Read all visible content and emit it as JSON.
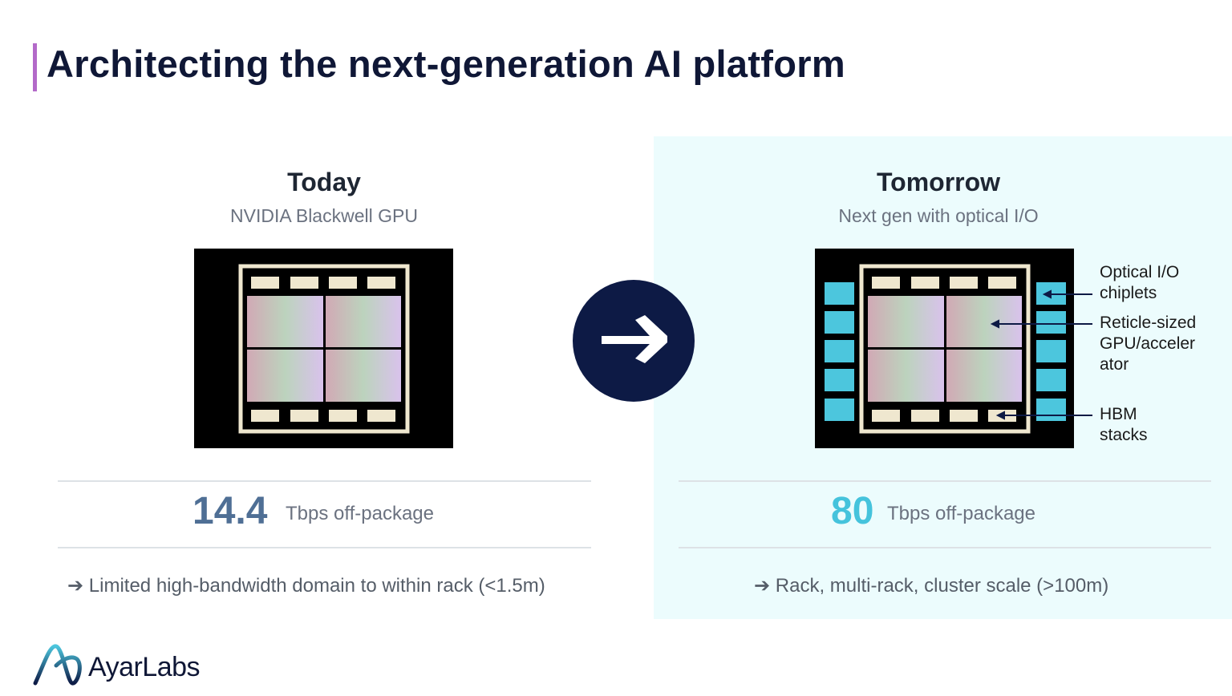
{
  "title": "Architecting the next-generation AI platform",
  "colors": {
    "accent": "#b36ac9",
    "navy": "#0d1a45",
    "today_value": "#4f6f95",
    "tomorrow_value": "#45c3dc",
    "chiplet": "#4cc6dd",
    "panel_bg": "#ecfcfd"
  },
  "today": {
    "heading": "Today",
    "subheading": "NVIDIA Blackwell GPU",
    "value": "14.4",
    "unit": "Tbps off-package",
    "note": "➔ Limited high-bandwidth domain to within rack (<1.5m)"
  },
  "tomorrow": {
    "heading": "Tomorrow",
    "subheading": "Next gen with optical I/O",
    "value": "80",
    "unit": "Tbps off-package",
    "note": "➔ Rack, multi-rack, cluster scale (>100m)",
    "labels": {
      "optical": "Optical I/O chiplets",
      "reticle": "Reticle-sized GPU/acceler ator",
      "hbm": "HBM stacks"
    }
  },
  "arrow_icon": "arrow-right-icon",
  "logo": {
    "text": "AyarLabs"
  }
}
